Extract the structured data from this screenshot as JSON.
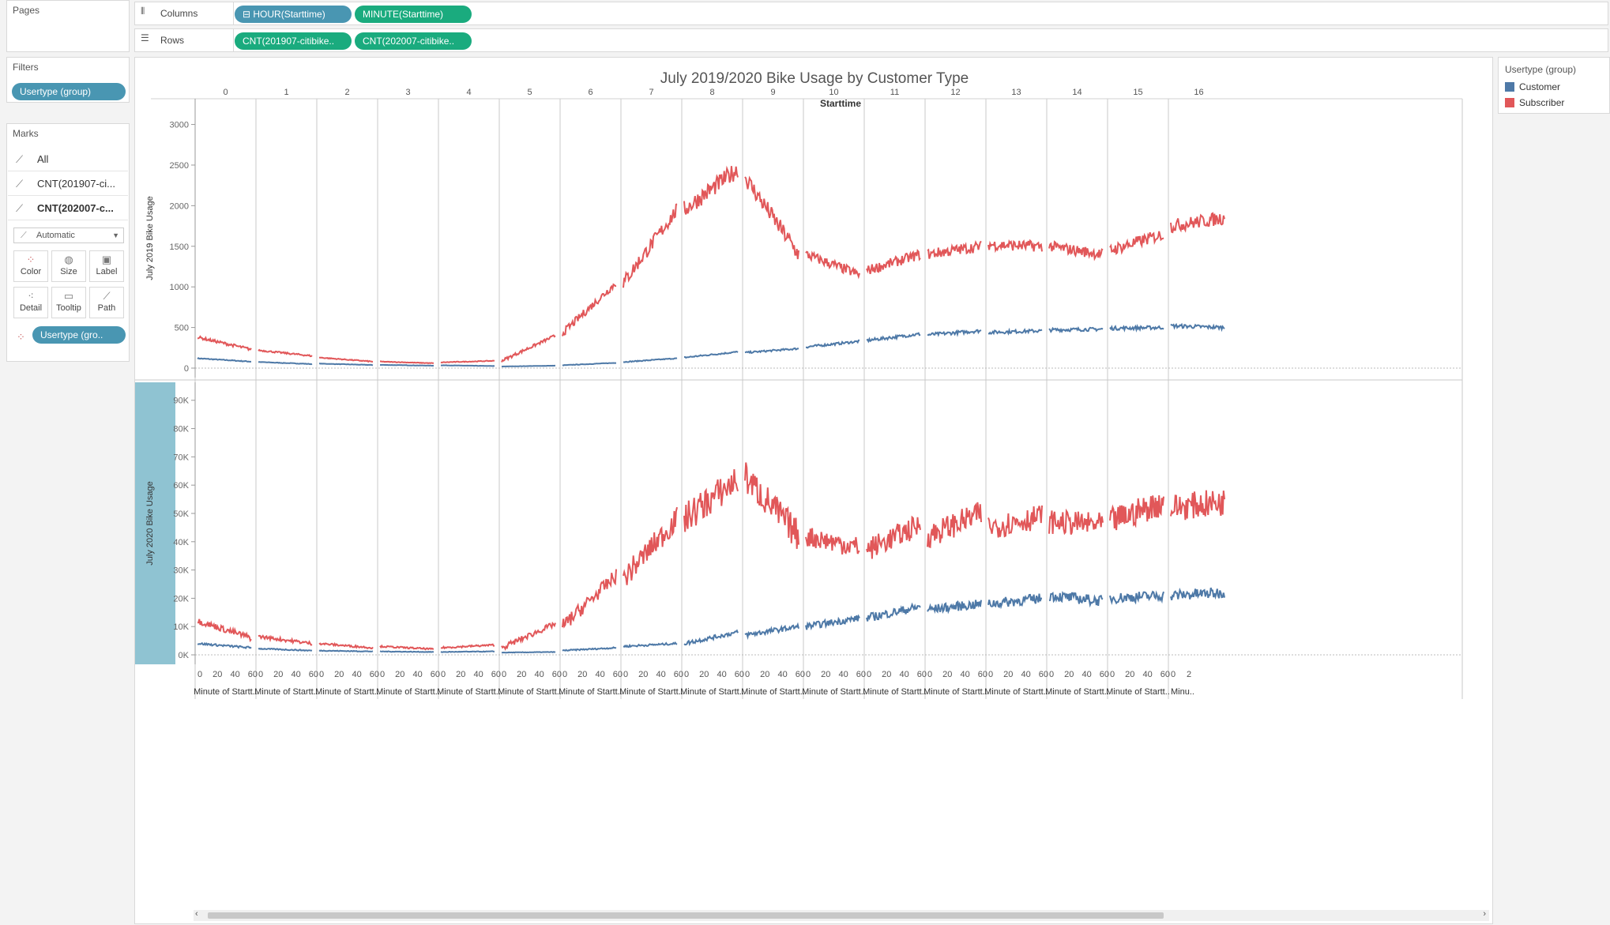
{
  "pages": {
    "title": "Pages"
  },
  "columns_shelf": {
    "label": "Columns",
    "pills": [
      "HOUR(Starttime)",
      "MINUTE(Starttime)"
    ]
  },
  "rows_shelf": {
    "label": "Rows",
    "pills": [
      "CNT(201907-citibike..",
      "CNT(202007-citibike.."
    ]
  },
  "filters": {
    "title": "Filters",
    "pill": "Usertype (group)"
  },
  "marks": {
    "title": "Marks",
    "items": [
      "All",
      "CNT(201907-ci...",
      "CNT(202007-c..."
    ],
    "mark_type": "Automatic",
    "buttons": [
      "Color",
      "Size",
      "Label",
      "Detail",
      "Tooltip",
      "Path"
    ],
    "color_pill": "Usertype (gro.."
  },
  "legend": {
    "title": "Usertype (group)",
    "items": [
      {
        "label": "Customer",
        "color": "#4e79a7"
      },
      {
        "label": "Subscriber",
        "color": "#e15759"
      }
    ]
  },
  "chart_data": {
    "type": "line",
    "title": "July 2019/2020 Bike Usage by Customer Type",
    "column_header": "Starttime",
    "hours": [
      "0",
      "1",
      "2",
      "3",
      "4",
      "5",
      "6",
      "7",
      "8",
      "9",
      "10",
      "11",
      "12",
      "13",
      "14",
      "15",
      "16"
    ],
    "minute_ticks": [
      "0",
      "20",
      "40",
      "60"
    ],
    "minute_axis_label": "Minute of Startt..",
    "last_pane_ticks": [
      "0",
      "2"
    ],
    "last_pane_label": "Minu..",
    "panes": [
      {
        "ylabel": "July 2019 Bike Usage",
        "yticks": [
          "0",
          "500",
          "1000",
          "1500",
          "2000",
          "2500",
          "3000"
        ],
        "ylim": [
          0,
          3200
        ],
        "series": [
          {
            "name": "Customer",
            "color": "#4e79a7",
            "hourly_start": [
              120,
              75,
              55,
              40,
              35,
              20,
              35,
              75,
              130,
              190,
              260,
              340,
              410,
              440,
              470,
              490,
              520
            ],
            "hourly_end": [
              80,
              50,
              38,
              30,
              25,
              30,
              65,
              120,
              200,
              240,
              330,
              420,
              460,
              460,
              480,
              500,
              500
            ]
          },
          {
            "name": "Subscriber",
            "color": "#e15759",
            "hourly_start": [
              380,
              220,
              130,
              80,
              70,
              90,
              430,
              1050,
              1950,
              2350,
              1400,
              1200,
              1400,
              1520,
              1500,
              1450,
              1750
            ],
            "hourly_end": [
              230,
              150,
              80,
              60,
              90,
              400,
              1050,
              1950,
              2450,
              1400,
              1150,
              1400,
              1500,
              1500,
              1400,
              1650,
              1850
            ]
          }
        ]
      },
      {
        "ylabel": "July 2020 Bike Usage",
        "yticks": [
          "0K",
          "10K",
          "20K",
          "30K",
          "40K",
          "50K",
          "60K",
          "70K",
          "80K",
          "90K"
        ],
        "ylim": [
          0,
          93000
        ],
        "series": [
          {
            "name": "Customer",
            "color": "#4e79a7",
            "hourly_start": [
              4000,
              2200,
              1500,
              1200,
              1000,
              800,
              1500,
              3000,
              4000,
              7000,
              10000,
              13000,
              16000,
              18000,
              21000,
              20000,
              21000
            ],
            "hourly_end": [
              2500,
              1500,
              1200,
              1000,
              1200,
              1000,
              2500,
              4000,
              8000,
              10000,
              13000,
              17000,
              18000,
              20000,
              19000,
              21000,
              22000
            ]
          },
          {
            "name": "Subscriber",
            "color": "#e15759",
            "hourly_start": [
              12000,
              6500,
              4000,
              3000,
              2500,
              2500,
              10000,
              27000,
              48000,
              63000,
              42000,
              37000,
              42000,
              45000,
              47000,
              47000,
              52000
            ],
            "hourly_end": [
              6000,
              4000,
              2500,
              2000,
              3500,
              11000,
              28000,
              48000,
              62000,
              42000,
              38000,
              46000,
              50000,
              49000,
              46000,
              54000,
              54000
            ]
          }
        ]
      }
    ]
  }
}
